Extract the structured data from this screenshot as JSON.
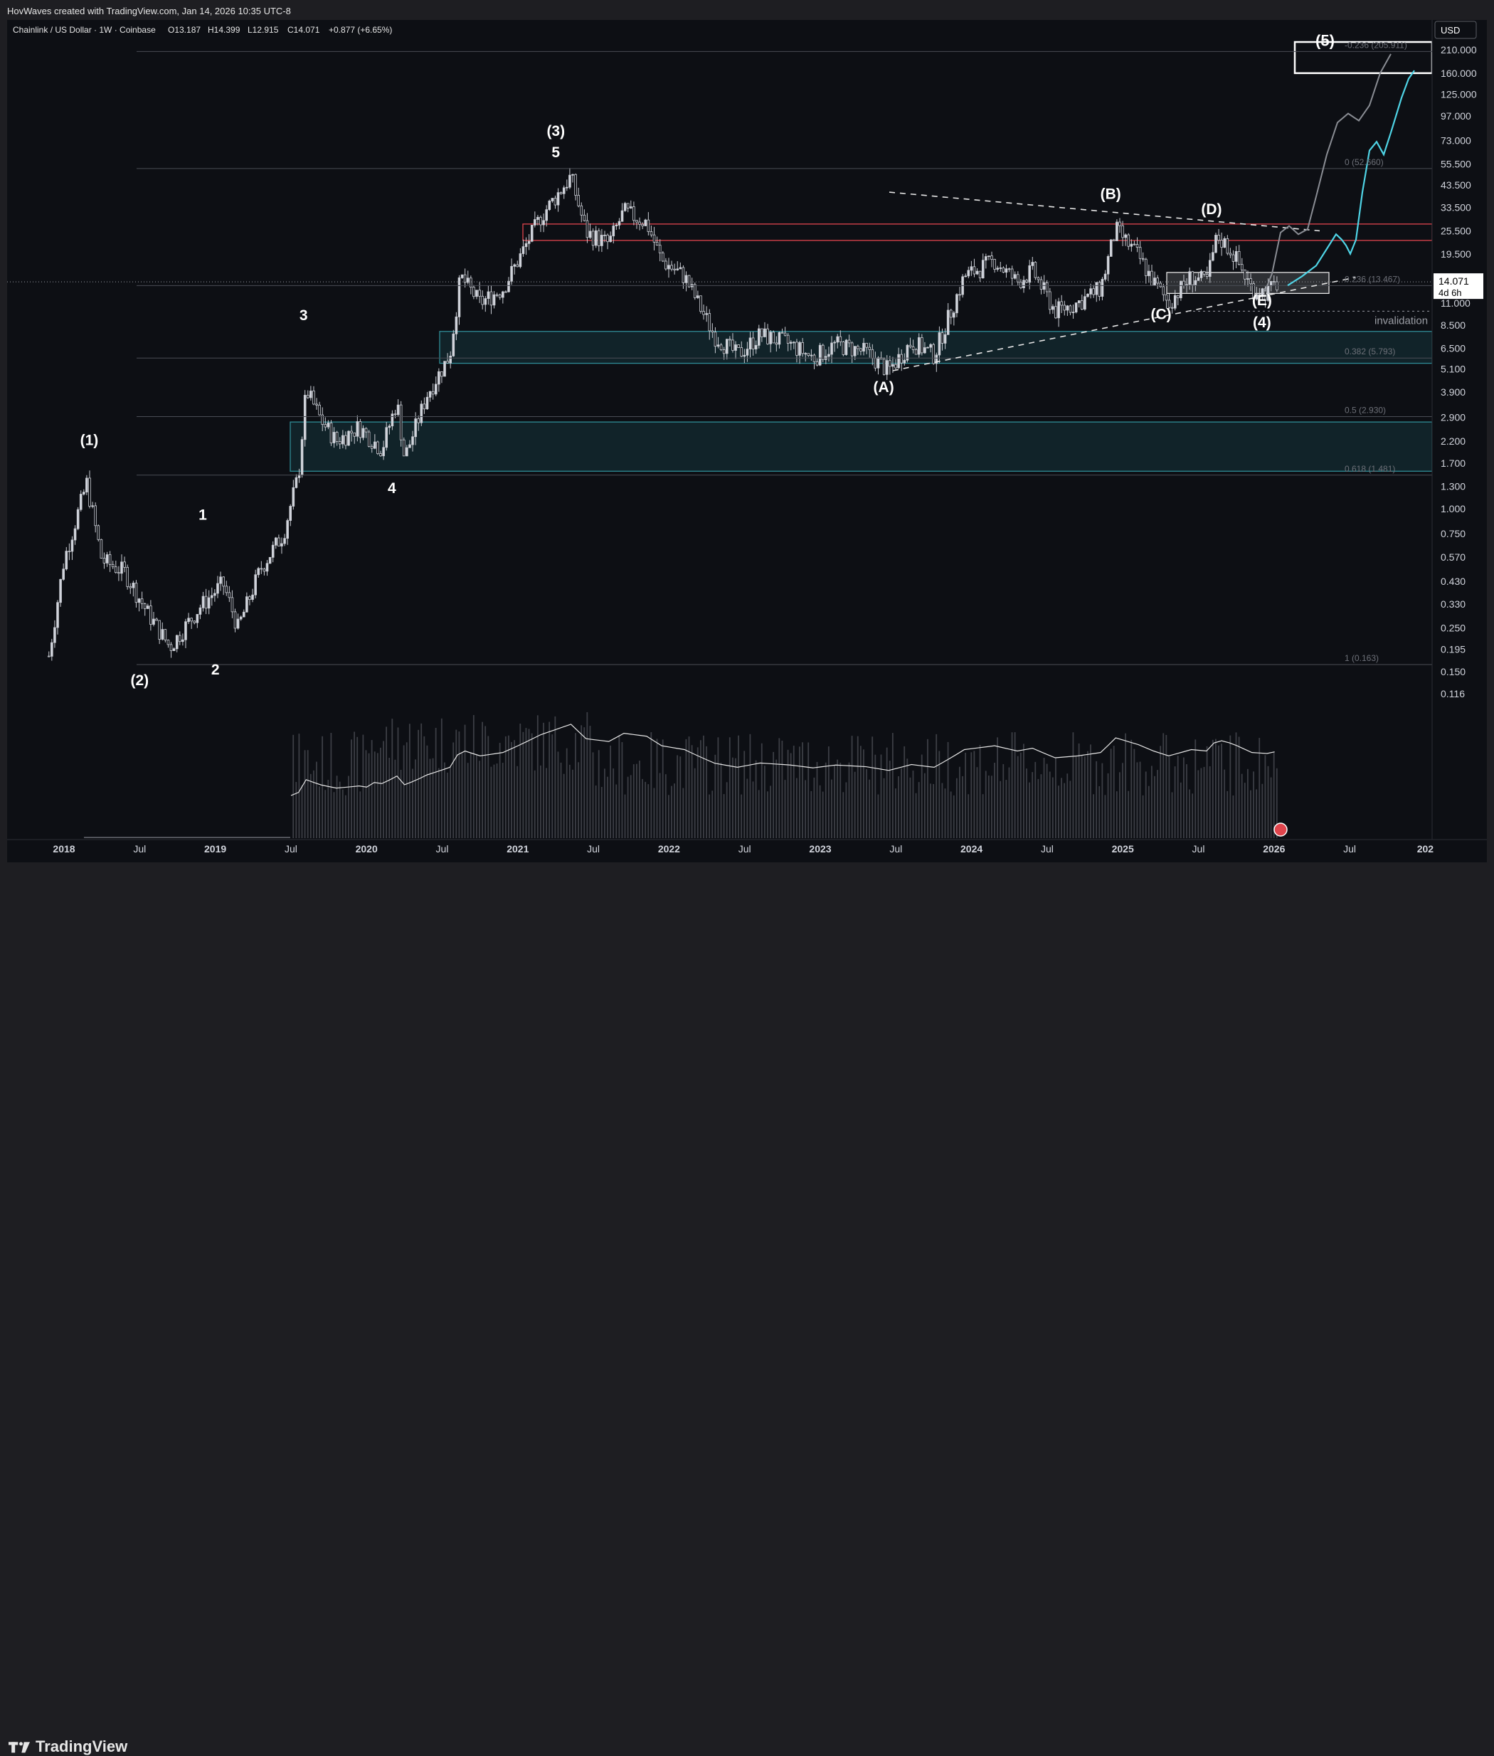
{
  "header": {
    "attribution": "HovWaves created with TradingView.com, Jan 14, 2026 10:35 UTC-8"
  },
  "legend": {
    "symbol": "Chainlink / US Dollar · 1W · Coinbase",
    "open": "O13.187",
    "high": "H14.399",
    "low": "L12.915",
    "close": "C14.071",
    "change": "+0.877 (+6.65%)"
  },
  "footer": {
    "brand": "TradingView"
  },
  "colors": {
    "up": "#d1d4dc",
    "zone_teal": "#1f6f78",
    "resistance": "#e0454d",
    "projection": "#4fd4e6",
    "alt_projection": "#8a8d94"
  },
  "chart_data": {
    "type": "candlestick",
    "scale": "log",
    "currency": "USD",
    "x_ticks": [
      "2018",
      "Jul",
      "2019",
      "Jul",
      "2020",
      "Jul",
      "2021",
      "Jul",
      "2022",
      "Jul",
      "2023",
      "Jul",
      "2024",
      "Jul",
      "2025",
      "Jul",
      "2026",
      "Jul",
      "202"
    ],
    "y_ticks": [
      "210.000",
      "160.000",
      "125.000",
      "97.000",
      "73.000",
      "55.500",
      "43.500",
      "33.500",
      "25.500",
      "19.500",
      "11.000",
      "8.500",
      "6.500",
      "5.100",
      "3.900",
      "2.900",
      "2.200",
      "1.700",
      "1.300",
      "1.000",
      "0.750",
      "0.570",
      "0.430",
      "0.330",
      "0.250",
      "0.195",
      "0.150",
      "0.116"
    ],
    "last_price": {
      "value": "14.071",
      "countdown": "4d 6h"
    },
    "fib_levels": [
      {
        "label": "-0.236 (205.911)",
        "value": 205.911
      },
      {
        "label": "0 (52.660)",
        "value": 52.66
      },
      {
        "label": "0.236 (13.467)",
        "value": 13.467
      },
      {
        "label": "0.382 (5.793)",
        "value": 5.793
      },
      {
        "label": "0.5 (2.930)",
        "value": 2.93
      },
      {
        "label": "0.618 (1.481)",
        "value": 1.481
      },
      {
        "label": "1 (0.163)",
        "value": 0.163
      }
    ],
    "zones": [
      {
        "kind": "support",
        "low": 5.45,
        "high": 7.9
      },
      {
        "kind": "support",
        "low": 1.55,
        "high": 2.75
      },
      {
        "kind": "resistance",
        "low": 22.8,
        "high": 27.6
      },
      {
        "kind": "target",
        "low": 160,
        "high": 230
      },
      {
        "kind": "consolidation",
        "low": 12.3,
        "high": 15.7
      }
    ],
    "wave_labels": [
      {
        "label": "(1)",
        "x": "2018-03",
        "y": 2.1
      },
      {
        "label": "(2)",
        "x": "2018-07",
        "y": 0.128
      },
      {
        "label": "1",
        "x": "2018-12",
        "y": 0.88
      },
      {
        "label": "2",
        "x": "2019-01",
        "y": 0.145
      },
      {
        "label": "3",
        "x": "2019-08",
        "y": 9.0
      },
      {
        "label": "4",
        "x": "2020-03",
        "y": 1.2
      },
      {
        "label": "(3)",
        "x": "2021-04",
        "y": 77.0
      },
      {
        "label": "5",
        "x": "2021-04",
        "y": 60.0
      },
      {
        "label": "(A)",
        "x": "2023-06",
        "y": 3.9
      },
      {
        "label": "(B)",
        "x": "2024-12",
        "y": 37.0
      },
      {
        "label": "(C)",
        "x": "2025-04",
        "y": 9.1
      },
      {
        "label": "(D)",
        "x": "2025-08",
        "y": 31.0
      },
      {
        "label": "(E)",
        "x": "2025-12",
        "y": 10.7
      },
      {
        "label": "(4)",
        "x": "2025-12",
        "y": 8.3
      },
      {
        "label": "(5)",
        "x": "2026-05",
        "y": 220.0
      }
    ],
    "annotations": [
      "invalidation"
    ],
    "invalidation_level": 10.0
  }
}
